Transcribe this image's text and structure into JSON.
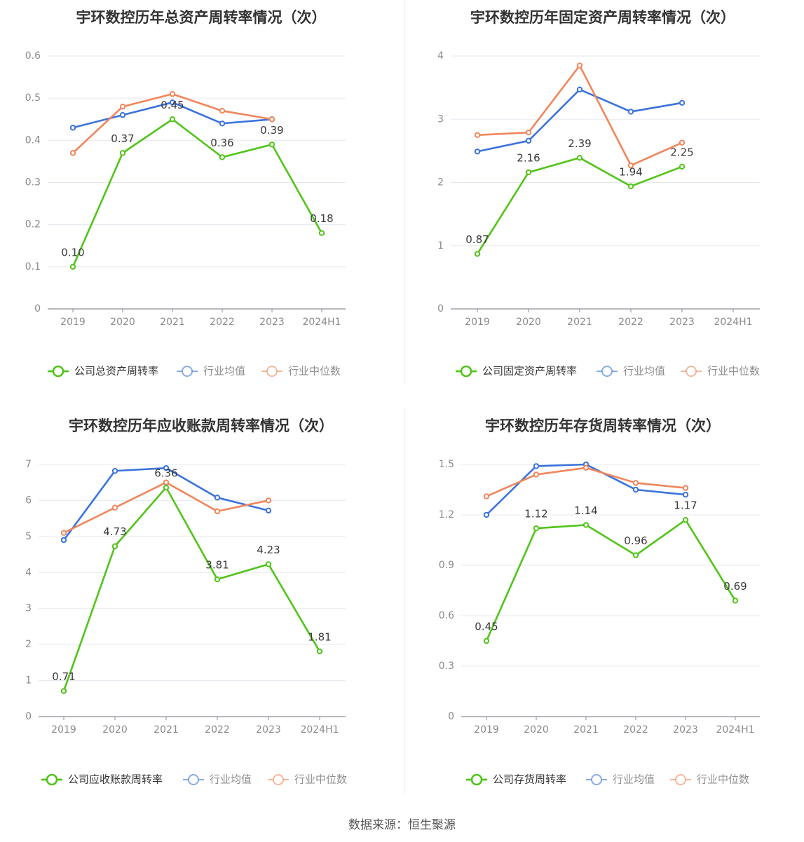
{
  "source": "数据来源：恒生聚源",
  "colors": {
    "company": "#52c41a",
    "avg": "#3b73db",
    "median": "#f0865c",
    "grid": "#e6e8f0",
    "axis": "#8a8f99",
    "tick": "#8a8a8a",
    "title": "#333333"
  },
  "chart_data": [
    {
      "type": "line",
      "title": "宇环数控历年总资产周转率情况（次）",
      "categories": [
        "2019",
        "2020",
        "2021",
        "2022",
        "2023",
        "2024H1"
      ],
      "ylim": [
        0,
        0.6
      ],
      "yticks": [
        "0",
        "0.1",
        "0.2",
        "0.3",
        "0.4",
        "0.5",
        "0.6"
      ],
      "legend_position": "bottom",
      "series": [
        {
          "name": "公司总资产周转率",
          "values": [
            0.1,
            0.37,
            0.45,
            0.36,
            0.39,
            0.18
          ],
          "labels": [
            "0.10",
            "0.37",
            "0.45",
            "0.36",
            "0.39",
            "0.18"
          ]
        },
        {
          "name": "行业均值",
          "values": [
            0.43,
            0.46,
            0.49,
            0.44,
            0.45,
            null
          ]
        },
        {
          "name": "行业中位数",
          "values": [
            0.37,
            0.48,
            0.51,
            0.47,
            0.45,
            null
          ]
        }
      ]
    },
    {
      "type": "line",
      "title": "宇环数控历年固定资产周转率情况（次）",
      "categories": [
        "2019",
        "2020",
        "2021",
        "2022",
        "2023",
        "2024H1"
      ],
      "ylim": [
        0,
        4
      ],
      "yticks": [
        "0",
        "1",
        "2",
        "3",
        "4"
      ],
      "legend_position": "bottom",
      "series": [
        {
          "name": "公司固定资产周转率",
          "values": [
            0.87,
            2.16,
            2.39,
            1.94,
            2.25,
            null
          ],
          "labels": [
            "0.87",
            "2.16",
            "2.39",
            "1.94",
            "2.25",
            null
          ]
        },
        {
          "name": "行业均值",
          "values": [
            2.49,
            2.66,
            3.47,
            3.12,
            3.26,
            null
          ]
        },
        {
          "name": "行业中位数",
          "values": [
            2.75,
            2.79,
            3.85,
            2.27,
            2.63,
            null
          ]
        }
      ]
    },
    {
      "type": "line",
      "title": "宇环数控历年应收账款周转率情况（次）",
      "categories": [
        "2019",
        "2020",
        "2021",
        "2022",
        "2023",
        "2024H1"
      ],
      "ylim": [
        0,
        7
      ],
      "yticks": [
        "0",
        "1",
        "2",
        "3",
        "4",
        "5",
        "6",
        "7"
      ],
      "legend_position": "bottom",
      "series": [
        {
          "name": "公司应收账款周转率",
          "values": [
            0.71,
            4.73,
            6.36,
            3.81,
            4.23,
            1.81
          ],
          "labels": [
            "0.71",
            "4.73",
            "6.36",
            "3.81",
            "4.23",
            "1.81"
          ]
        },
        {
          "name": "行业均值",
          "values": [
            4.9,
            6.82,
            6.9,
            6.08,
            5.72,
            null
          ]
        },
        {
          "name": "行业中位数",
          "values": [
            5.1,
            5.8,
            6.5,
            5.7,
            6.0,
            null
          ]
        }
      ]
    },
    {
      "type": "line",
      "title": "宇环数控历年存货周转率情况（次）",
      "categories": [
        "2019",
        "2020",
        "2021",
        "2022",
        "2023",
        "2024H1"
      ],
      "ylim": [
        0,
        1.5
      ],
      "yticks": [
        "0",
        "0.3",
        "0.6",
        "0.9",
        "1.2",
        "1.5"
      ],
      "legend_position": "bottom",
      "series": [
        {
          "name": "公司存货周转率",
          "values": [
            0.45,
            1.12,
            1.14,
            0.96,
            1.17,
            0.69
          ],
          "labels": [
            "0.45",
            "1.12",
            "1.14",
            "0.96",
            "1.17",
            "0.69"
          ]
        },
        {
          "name": "行业均值",
          "values": [
            1.2,
            1.49,
            1.5,
            1.35,
            1.32,
            null
          ]
        },
        {
          "name": "行业中位数",
          "values": [
            1.31,
            1.44,
            1.48,
            1.39,
            1.36,
            null
          ]
        }
      ]
    }
  ]
}
